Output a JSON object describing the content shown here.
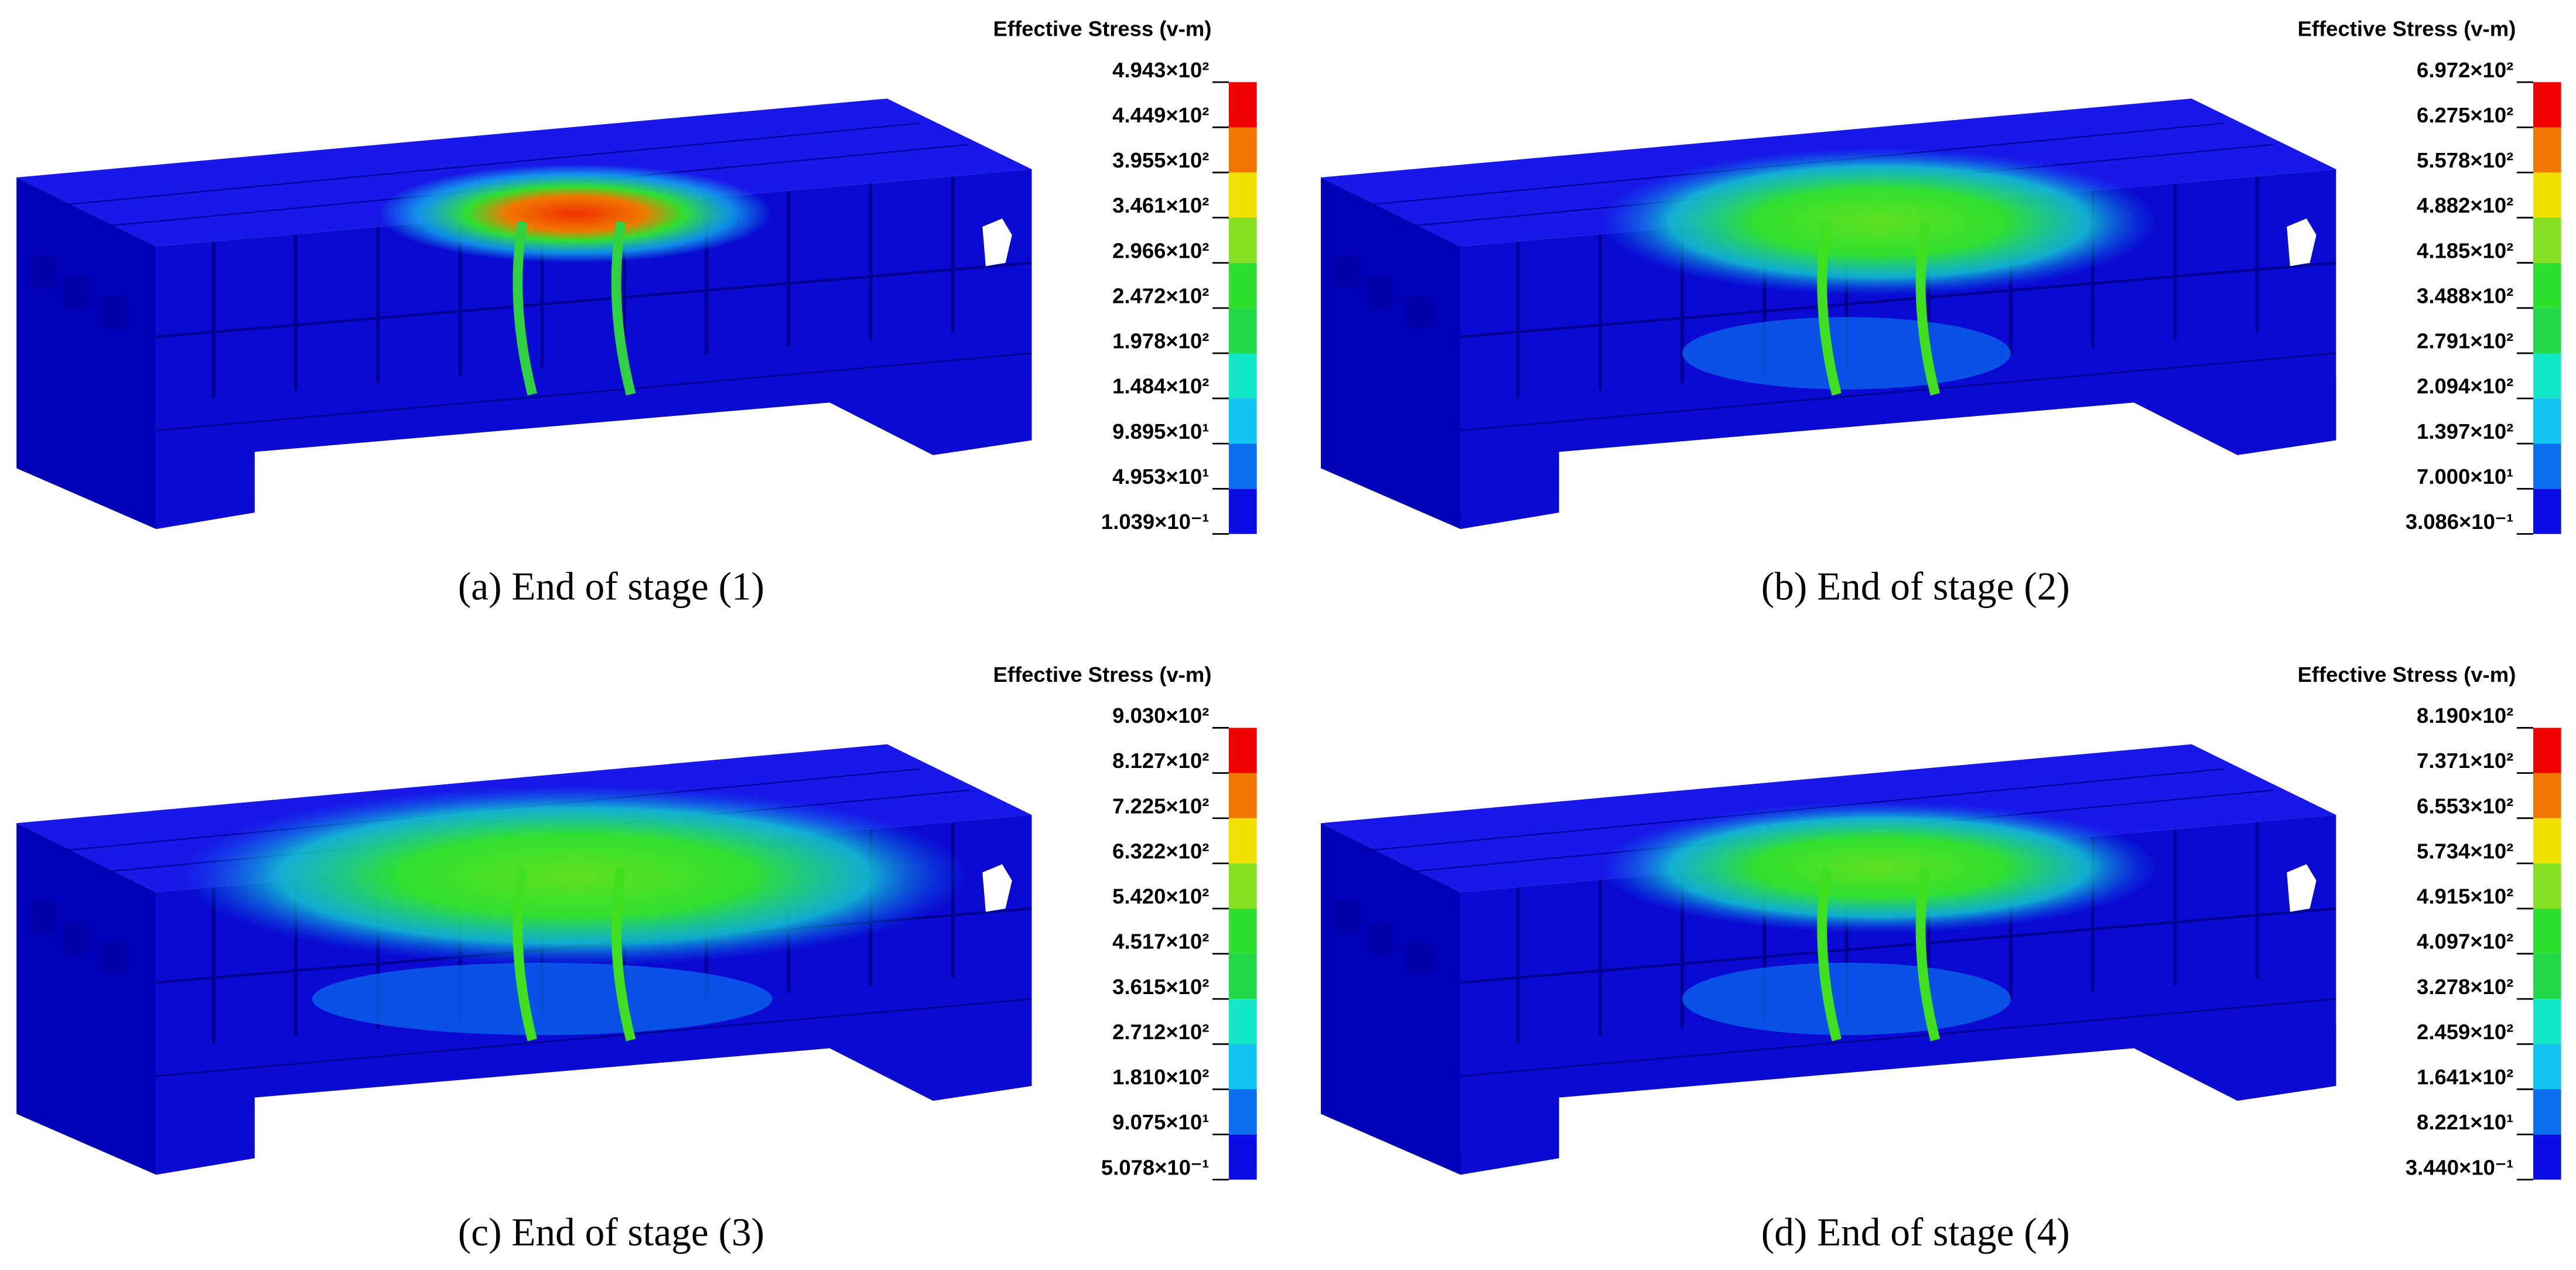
{
  "panels": [
    {
      "legend_title": "Effective Stress (v-m)",
      "caption": "(a) End of stage (1)",
      "colorbar": {
        "lim": [
          0.1039,
          494.3
        ],
        "ticks": [
          {
            "value": 494.3,
            "label": "4.943×10²"
          },
          {
            "value": 444.9,
            "label": "4.449×10²"
          },
          {
            "value": 395.5,
            "label": "3.955×10²"
          },
          {
            "value": 346.1,
            "label": "3.461×10²"
          },
          {
            "value": 296.6,
            "label": "2.966×10²"
          },
          {
            "value": 247.2,
            "label": "2.472×10²"
          },
          {
            "value": 197.8,
            "label": "1.978×10²"
          },
          {
            "value": 148.4,
            "label": "1.484×10²"
          },
          {
            "value": 98.95,
            "label": "9.895×10¹"
          },
          {
            "value": 49.53,
            "label": "4.953×10¹"
          },
          {
            "value": 0.1039,
            "label": "1.039×10⁻¹"
          }
        ]
      }
    },
    {
      "legend_title": "Effective Stress (v-m)",
      "caption": "(b) End of stage (2)",
      "colorbar": {
        "lim": [
          0.3086,
          697.2
        ],
        "ticks": [
          {
            "value": 697.2,
            "label": "6.972×10²"
          },
          {
            "value": 627.5,
            "label": "6.275×10²"
          },
          {
            "value": 557.8,
            "label": "5.578×10²"
          },
          {
            "value": 488.2,
            "label": "4.882×10²"
          },
          {
            "value": 418.5,
            "label": "4.185×10²"
          },
          {
            "value": 348.8,
            "label": "3.488×10²"
          },
          {
            "value": 279.1,
            "label": "2.791×10²"
          },
          {
            "value": 209.4,
            "label": "2.094×10²"
          },
          {
            "value": 139.7,
            "label": "1.397×10²"
          },
          {
            "value": 70.0,
            "label": "7.000×10¹"
          },
          {
            "value": 0.3086,
            "label": "3.086×10⁻¹"
          }
        ]
      }
    },
    {
      "legend_title": "Effective Stress (v-m)",
      "caption": "(c) End of stage (3)",
      "colorbar": {
        "lim": [
          0.5078,
          903.0
        ],
        "ticks": [
          {
            "value": 903.0,
            "label": "9.030×10²"
          },
          {
            "value": 812.7,
            "label": "8.127×10²"
          },
          {
            "value": 722.5,
            "label": "7.225×10²"
          },
          {
            "value": 632.2,
            "label": "6.322×10²"
          },
          {
            "value": 542.0,
            "label": "5.420×10²"
          },
          {
            "value": 451.7,
            "label": "4.517×10²"
          },
          {
            "value": 361.5,
            "label": "3.615×10²"
          },
          {
            "value": 271.2,
            "label": "2.712×10²"
          },
          {
            "value": 181.0,
            "label": "1.810×10²"
          },
          {
            "value": 90.75,
            "label": "9.075×10¹"
          },
          {
            "value": 0.5078,
            "label": "5.078×10⁻¹"
          }
        ]
      }
    },
    {
      "legend_title": "Effective Stress (v-m)",
      "caption": "(d) End of stage (4)",
      "colorbar": {
        "lim": [
          0.344,
          819.0
        ],
        "ticks": [
          {
            "value": 819.0,
            "label": "8.190×10²"
          },
          {
            "value": 737.1,
            "label": "7.371×10²"
          },
          {
            "value": 655.3,
            "label": "6.553×10²"
          },
          {
            "value": 573.4,
            "label": "5.734×10²"
          },
          {
            "value": 491.5,
            "label": "4.915×10²"
          },
          {
            "value": 409.7,
            "label": "4.097×10²"
          },
          {
            "value": 327.8,
            "label": "3.278×10²"
          },
          {
            "value": 245.9,
            "label": "2.459×10²"
          },
          {
            "value": 164.1,
            "label": "1.641×10²"
          },
          {
            "value": 82.21,
            "label": "8.221×10¹"
          },
          {
            "value": 0.344,
            "label": "3.440×10⁻¹"
          }
        ]
      }
    }
  ],
  "colorbar_colors": [
    "#0b0be6",
    "#0a6ff0",
    "#12c4f0",
    "#12e8c8",
    "#22d848",
    "#2ee02e",
    "#84e020",
    "#f0e000",
    "#f07800",
    "#f00000"
  ]
}
